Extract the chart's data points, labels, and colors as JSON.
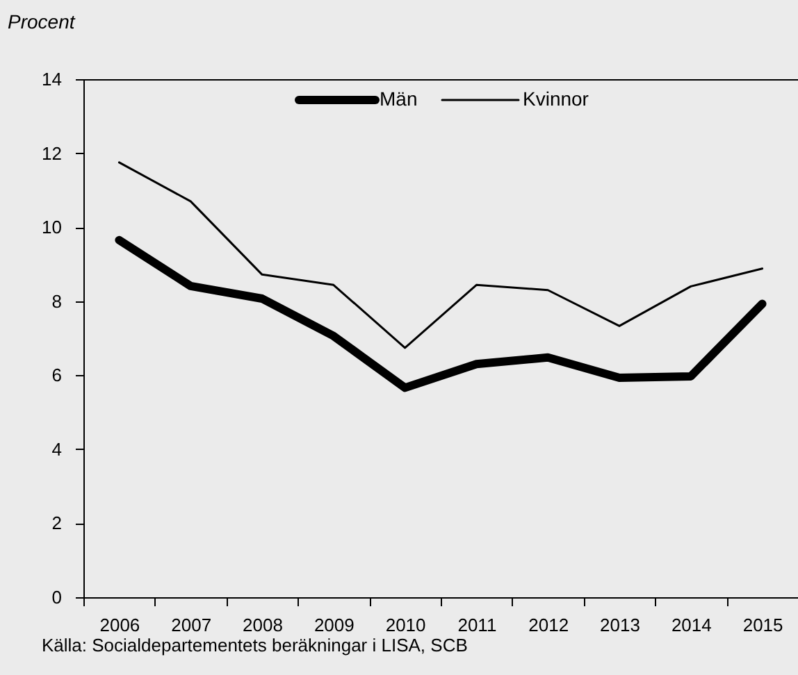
{
  "chart_data": {
    "type": "line",
    "ylabel": "Procent",
    "categories": [
      "2006",
      "2007",
      "2008",
      "2009",
      "2010",
      "2011",
      "2012",
      "2013",
      "2014",
      "2015"
    ],
    "series": [
      {
        "name": "Män",
        "color": "#000000",
        "values": [
          9.65,
          8.41,
          8.07,
          7.06,
          5.66,
          6.3,
          6.48,
          5.93,
          5.97,
          7.93
        ]
      },
      {
        "name": "Kvinnor",
        "color": "#000000",
        "values": [
          11.75,
          10.7,
          8.72,
          8.44,
          6.74,
          8.44,
          8.3,
          7.33,
          8.4,
          8.88
        ]
      }
    ],
    "ylim": [
      0,
      14
    ],
    "yticks": [
      0,
      2,
      4,
      6,
      8,
      10,
      12,
      14
    ],
    "grid": false,
    "legend": "top",
    "annotations": [
      "Källa: Socialdepartementets beräkningar i LISA, SCB"
    ]
  }
}
